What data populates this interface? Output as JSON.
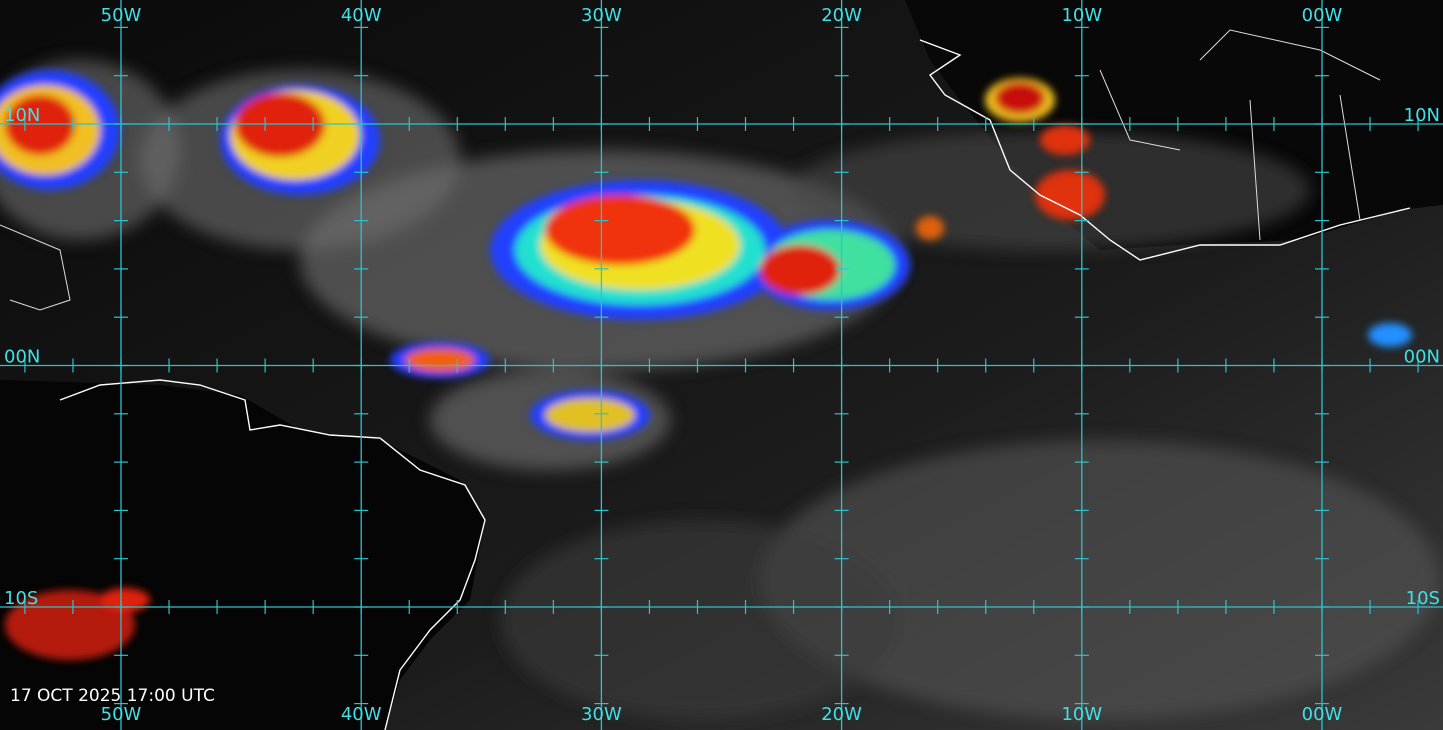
{
  "map": {
    "longitudes": [
      "50W",
      "40W",
      "30W",
      "20W",
      "10W",
      "00W"
    ],
    "latitudes": [
      "10N",
      "00N",
      "10S"
    ],
    "timestamp": "17 OCT 2025 17:00 UTC"
  }
}
